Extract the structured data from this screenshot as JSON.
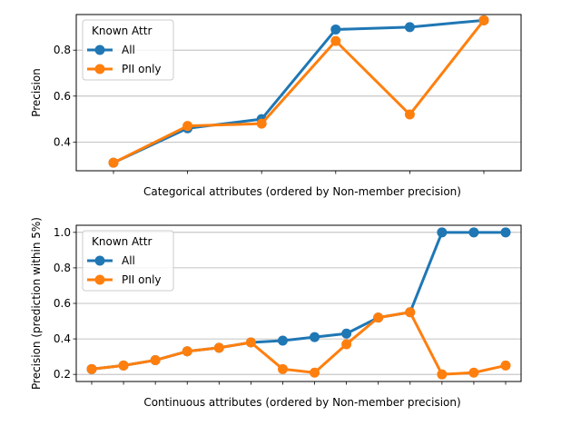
{
  "chart_data": [
    {
      "type": "line",
      "xlabel": "Categorical attributes (ordered by Non-member precision)",
      "ylabel": "Precision",
      "ylim": [
        0.275,
        0.955
      ],
      "yticks": [
        0.4,
        0.6,
        0.8
      ],
      "grid": "y",
      "legend": {
        "title": "Known Attr",
        "placement": "top-left"
      },
      "x": [
        0,
        1,
        2,
        3,
        4,
        5
      ],
      "series": [
        {
          "name": "All",
          "color": "#1f77b4",
          "values": [
            0.31,
            0.46,
            0.5,
            0.89,
            0.9,
            0.93
          ]
        },
        {
          "name": "PII only",
          "color": "#ff7f0e",
          "values": [
            0.31,
            0.47,
            0.48,
            0.84,
            0.52,
            0.93
          ]
        }
      ]
    },
    {
      "type": "line",
      "xlabel": "Continuous attributes (ordered by Non-member precision)",
      "ylabel": "Precision (prediction within 5%)",
      "ylim": [
        0.16,
        1.04
      ],
      "yticks": [
        0.2,
        0.4,
        0.6,
        0.8,
        1.0
      ],
      "grid": "y",
      "legend": {
        "title": "Known Attr",
        "placement": "top-left"
      },
      "x": [
        0,
        1,
        2,
        3,
        4,
        5,
        6,
        7,
        8,
        9,
        10,
        11,
        12,
        13
      ],
      "series": [
        {
          "name": "All",
          "color": "#1f77b4",
          "values": [
            0.23,
            0.25,
            0.28,
            0.33,
            0.35,
            0.38,
            0.39,
            0.41,
            0.43,
            0.52,
            0.55,
            1.0,
            1.0,
            1.0
          ]
        },
        {
          "name": "PII only",
          "color": "#ff7f0e",
          "values": [
            0.23,
            0.25,
            0.28,
            0.33,
            0.35,
            0.38,
            0.23,
            0.21,
            0.37,
            0.52,
            0.55,
            0.2,
            0.21,
            0.25
          ]
        }
      ]
    }
  ]
}
